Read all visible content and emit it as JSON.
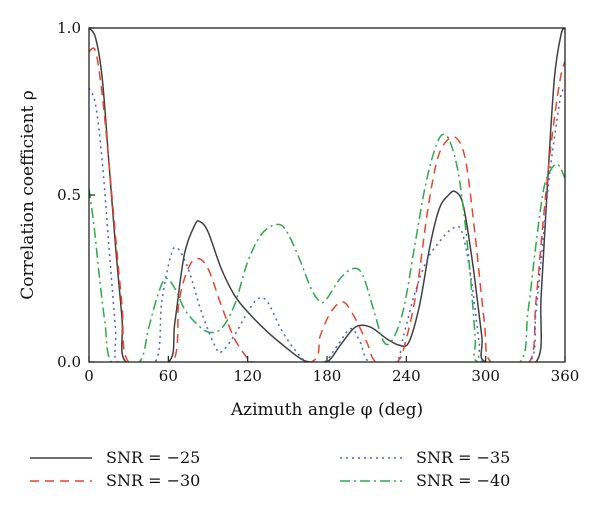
{
  "chart_data": {
    "type": "line",
    "title": "",
    "xlabel": "Azimuth angle φ (deg)",
    "ylabel": "Correlation coefficient ρ",
    "xlim": [
      0,
      360
    ],
    "ylim": [
      0,
      1
    ],
    "xticks": [
      0,
      60,
      120,
      180,
      240,
      300,
      360
    ],
    "xtick_labels": [
      "0",
      "60",
      "120",
      "180",
      "240",
      "300",
      "360"
    ],
    "yticks": [
      0,
      0.5,
      1
    ],
    "ytick_labels": [
      "0.0",
      "0.5",
      "1.0"
    ],
    "grid": false,
    "legend_position": "bottom",
    "series": [
      {
        "name": "SNR = −25",
        "color": "#404040",
        "dash": "solid",
        "points": [
          [
            0,
            1.0
          ],
          [
            5,
            0.97
          ],
          [
            10,
            0.85
          ],
          [
            15,
            0.6
          ],
          [
            20,
            0.35
          ],
          [
            25,
            0.13
          ],
          [
            28,
            0.0
          ],
          [
            60,
            0.0
          ],
          [
            65,
            0.12
          ],
          [
            72,
            0.32
          ],
          [
            80,
            0.41
          ],
          [
            84,
            0.42
          ],
          [
            90,
            0.39
          ],
          [
            100,
            0.28
          ],
          [
            110,
            0.2
          ],
          [
            120,
            0.15
          ],
          [
            135,
            0.09
          ],
          [
            150,
            0.04
          ],
          [
            160,
            0.01
          ],
          [
            167,
            0.0
          ],
          [
            180,
            0.0
          ],
          [
            190,
            0.05
          ],
          [
            200,
            0.1
          ],
          [
            207,
            0.11
          ],
          [
            215,
            0.1
          ],
          [
            225,
            0.07
          ],
          [
            235,
            0.05
          ],
          [
            242,
            0.06
          ],
          [
            250,
            0.17
          ],
          [
            258,
            0.35
          ],
          [
            265,
            0.46
          ],
          [
            272,
            0.5
          ],
          [
            277,
            0.51
          ],
          [
            283,
            0.47
          ],
          [
            290,
            0.3
          ],
          [
            297,
            0.08
          ],
          [
            300,
            0.0
          ],
          [
            338,
            0.0
          ],
          [
            342,
            0.2
          ],
          [
            347,
            0.55
          ],
          [
            352,
            0.85
          ],
          [
            357,
            0.98
          ],
          [
            360,
            1.0
          ]
        ]
      },
      {
        "name": "SNR = −30",
        "color": "#e8442c",
        "dash": "9,6",
        "points": [
          [
            0,
            0.93
          ],
          [
            5,
            0.93
          ],
          [
            10,
            0.8
          ],
          [
            15,
            0.6
          ],
          [
            20,
            0.38
          ],
          [
            25,
            0.17
          ],
          [
            30,
            0.0
          ],
          [
            63,
            0.0
          ],
          [
            68,
            0.18
          ],
          [
            75,
            0.28
          ],
          [
            82,
            0.31
          ],
          [
            90,
            0.28
          ],
          [
            100,
            0.17
          ],
          [
            110,
            0.07
          ],
          [
            120,
            0.01
          ],
          [
            123,
            0.0
          ],
          [
            168,
            0.0
          ],
          [
            175,
            0.08
          ],
          [
            183,
            0.15
          ],
          [
            192,
            0.18
          ],
          [
            200,
            0.14
          ],
          [
            210,
            0.06
          ],
          [
            217,
            0.0
          ],
          [
            233,
            0.0
          ],
          [
            240,
            0.07
          ],
          [
            248,
            0.22
          ],
          [
            256,
            0.45
          ],
          [
            263,
            0.6
          ],
          [
            270,
            0.66
          ],
          [
            278,
            0.67
          ],
          [
            285,
            0.6
          ],
          [
            292,
            0.38
          ],
          [
            299,
            0.12
          ],
          [
            304,
            0.0
          ],
          [
            333,
            0.0
          ],
          [
            338,
            0.18
          ],
          [
            343,
            0.4
          ],
          [
            348,
            0.6
          ],
          [
            353,
            0.76
          ],
          [
            357,
            0.86
          ],
          [
            360,
            0.9
          ]
        ]
      },
      {
        "name": "SNR = −35",
        "color": "#4a5ed6",
        "dash": "2,4",
        "points": [
          [
            0,
            0.82
          ],
          [
            5,
            0.77
          ],
          [
            10,
            0.6
          ],
          [
            15,
            0.35
          ],
          [
            20,
            0.1
          ],
          [
            22,
            0.0
          ],
          [
            50,
            0.0
          ],
          [
            55,
            0.18
          ],
          [
            62,
            0.32
          ],
          [
            67,
            0.34
          ],
          [
            75,
            0.28
          ],
          [
            85,
            0.15
          ],
          [
            95,
            0.05
          ],
          [
            100,
            0.03
          ],
          [
            110,
            0.08
          ],
          [
            120,
            0.15
          ],
          [
            128,
            0.19
          ],
          [
            135,
            0.18
          ],
          [
            145,
            0.1
          ],
          [
            155,
            0.04
          ],
          [
            165,
            0.0
          ],
          [
            178,
            0.0
          ],
          [
            188,
            0.05
          ],
          [
            198,
            0.1
          ],
          [
            205,
            0.06
          ],
          [
            212,
            0.0
          ],
          [
            232,
            0.0
          ],
          [
            238,
            0.08
          ],
          [
            246,
            0.2
          ],
          [
            255,
            0.3
          ],
          [
            265,
            0.36
          ],
          [
            275,
            0.4
          ],
          [
            282,
            0.39
          ],
          [
            289,
            0.25
          ],
          [
            295,
            0.06
          ],
          [
            298,
            0.0
          ],
          [
            333,
            0.0
          ],
          [
            338,
            0.15
          ],
          [
            343,
            0.35
          ],
          [
            348,
            0.55
          ],
          [
            353,
            0.7
          ],
          [
            357,
            0.8
          ],
          [
            360,
            0.82
          ]
        ]
      },
      {
        "name": "SNR = −40",
        "color": "#2ea84a",
        "dash": "10,4,2,4",
        "points": [
          [
            0,
            0.52
          ],
          [
            4,
            0.4
          ],
          [
            8,
            0.25
          ],
          [
            12,
            0.12
          ],
          [
            17,
            0.0
          ],
          [
            38,
            0.0
          ],
          [
            45,
            0.1
          ],
          [
            52,
            0.2
          ],
          [
            58,
            0.25
          ],
          [
            65,
            0.22
          ],
          [
            72,
            0.16
          ],
          [
            80,
            0.12
          ],
          [
            90,
            0.09
          ],
          [
            100,
            0.1
          ],
          [
            110,
            0.17
          ],
          [
            120,
            0.3
          ],
          [
            130,
            0.38
          ],
          [
            140,
            0.41
          ],
          [
            148,
            0.4
          ],
          [
            158,
            0.32
          ],
          [
            168,
            0.22
          ],
          [
            175,
            0.18
          ],
          [
            180,
            0.19
          ],
          [
            190,
            0.25
          ],
          [
            200,
            0.28
          ],
          [
            207,
            0.26
          ],
          [
            215,
            0.16
          ],
          [
            223,
            0.06
          ],
          [
            230,
            0.07
          ],
          [
            238,
            0.16
          ],
          [
            246,
            0.34
          ],
          [
            254,
            0.52
          ],
          [
            261,
            0.63
          ],
          [
            267,
            0.68
          ],
          [
            273,
            0.66
          ],
          [
            280,
            0.55
          ],
          [
            287,
            0.32
          ],
          [
            292,
            0.08
          ],
          [
            294,
            0.0
          ],
          [
            326,
            0.0
          ],
          [
            332,
            0.15
          ],
          [
            338,
            0.35
          ],
          [
            344,
            0.52
          ],
          [
            350,
            0.58
          ],
          [
            355,
            0.59
          ],
          [
            360,
            0.55
          ]
        ]
      }
    ]
  }
}
